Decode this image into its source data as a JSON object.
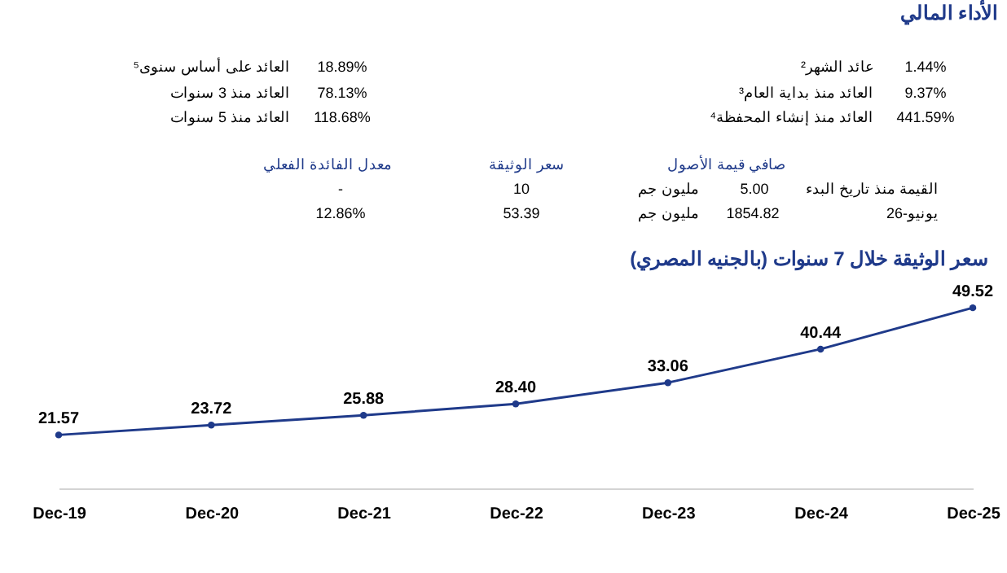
{
  "chart_data": [
    {
      "type": "other",
      "title": "الأداء المالي",
      "annotations": [
        "عائد الشهر²",
        "1.44%",
        "العائد منذ بداية العام³",
        "9.37%",
        "العائد منذ إنشاء المحفظة⁴",
        "441.59%",
        "العائد على أساس سنوى⁵",
        "18.89%",
        "العائد منذ 3 سنوات",
        "78.13%",
        "العائد منذ 5 سنوات",
        "118.68%",
        "صافي قيمة الأصول",
        "سعر الوثيقة",
        "معدل الفائدة الفعلي",
        "القيمة منذ تاريخ البدء",
        "5.00",
        "مليون جم",
        "10",
        "-",
        "يونيو-26",
        "1854.82",
        "مليون جم",
        "53.39",
        "12.86%"
      ]
    },
    {
      "type": "line",
      "title": "سعر الوثيقة خلال 7 سنوات (بالجنيه المصري)",
      "x": [
        "2019-12",
        "2020-12",
        "2021-12",
        "2022-12",
        "2023-12",
        "2024-12",
        "2025-12"
      ],
      "series": [
        {
          "color": "#1f3a8a",
          "values": [
            21.57,
            23.72,
            25.88,
            28.4,
            33.06,
            40.44,
            49.52
          ],
          "value_labels": [
            "21.57",
            "23.72",
            "25.88",
            "28.40",
            "33.06",
            "40.44",
            "49.52"
          ]
        }
      ],
      "xlim": [
        "2019-12",
        "2025-12"
      ],
      "xticks": [
        {
          "value": "2019-12",
          "label": "Dec-19"
        },
        {
          "value": "2020-12",
          "label": "Dec-20"
        },
        {
          "value": "2021-12",
          "label": "Dec-21"
        },
        {
          "value": "2022-12",
          "label": "Dec-22"
        },
        {
          "value": "2023-12",
          "label": "Dec-23"
        },
        {
          "value": "2024-12",
          "label": "Dec-24"
        },
        {
          "value": "2025-12",
          "label": "Dec-25"
        }
      ],
      "tick_labels": "x",
      "grid": false,
      "legend": false,
      "marker": "circle",
      "line_style": "solid"
    }
  ]
}
